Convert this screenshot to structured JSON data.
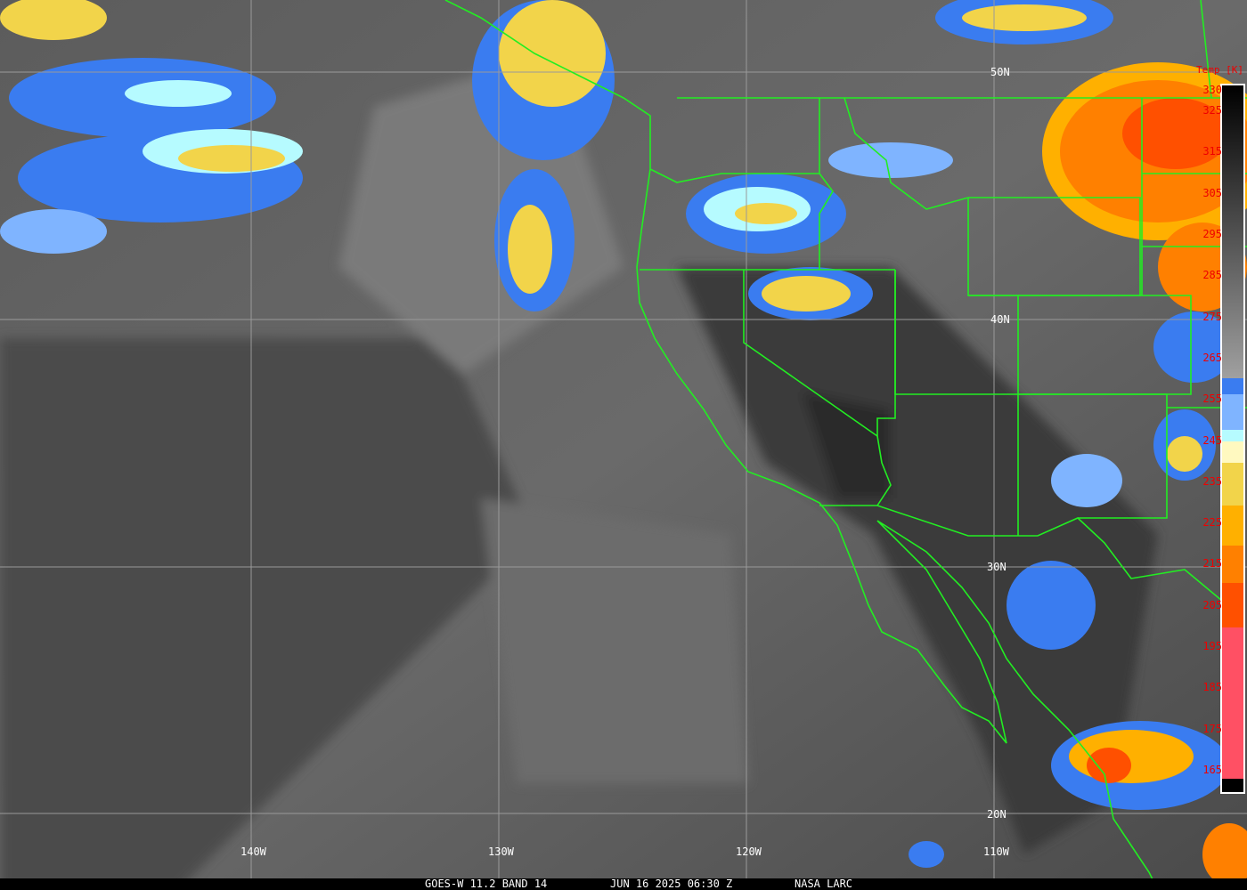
{
  "caption": {
    "satellite": "GOES-W 11.2 BAND 14",
    "datetime": "JUN 16 2025 06:30 Z",
    "source": "NASA LARC"
  },
  "graticule": {
    "lat_labels": [
      "50N",
      "40N",
      "30N",
      "20N"
    ],
    "lon_labels": [
      "140W",
      "130W",
      "120W",
      "110W"
    ]
  },
  "colorbar": {
    "title": "Temp [K]",
    "ticks": [
      "330",
      "325",
      "315",
      "305",
      "295",
      "285",
      "275",
      "265",
      "255",
      "245",
      "235",
      "225",
      "215",
      "205",
      "195",
      "185",
      "175",
      "165"
    ],
    "colors": {
      "warm_gray_top": "#000000",
      "gray_bottom": "#a0a0a0",
      "blue": "#3a7cf0",
      "light_blue": "#7fb4ff",
      "cyan": "#b6fbff",
      "pale_yellow": "#fff9c0",
      "yellow": "#f2d44a",
      "amber": "#ffb000",
      "orange": "#ff8000",
      "red_orange": "#ff5000",
      "pink": "#ff5064"
    }
  },
  "colors": {
    "boundaries": "#22ee22",
    "gridlines": "#9a9a9a",
    "label_text": "#ffffff",
    "colorbar_text": "#ee0000"
  }
}
